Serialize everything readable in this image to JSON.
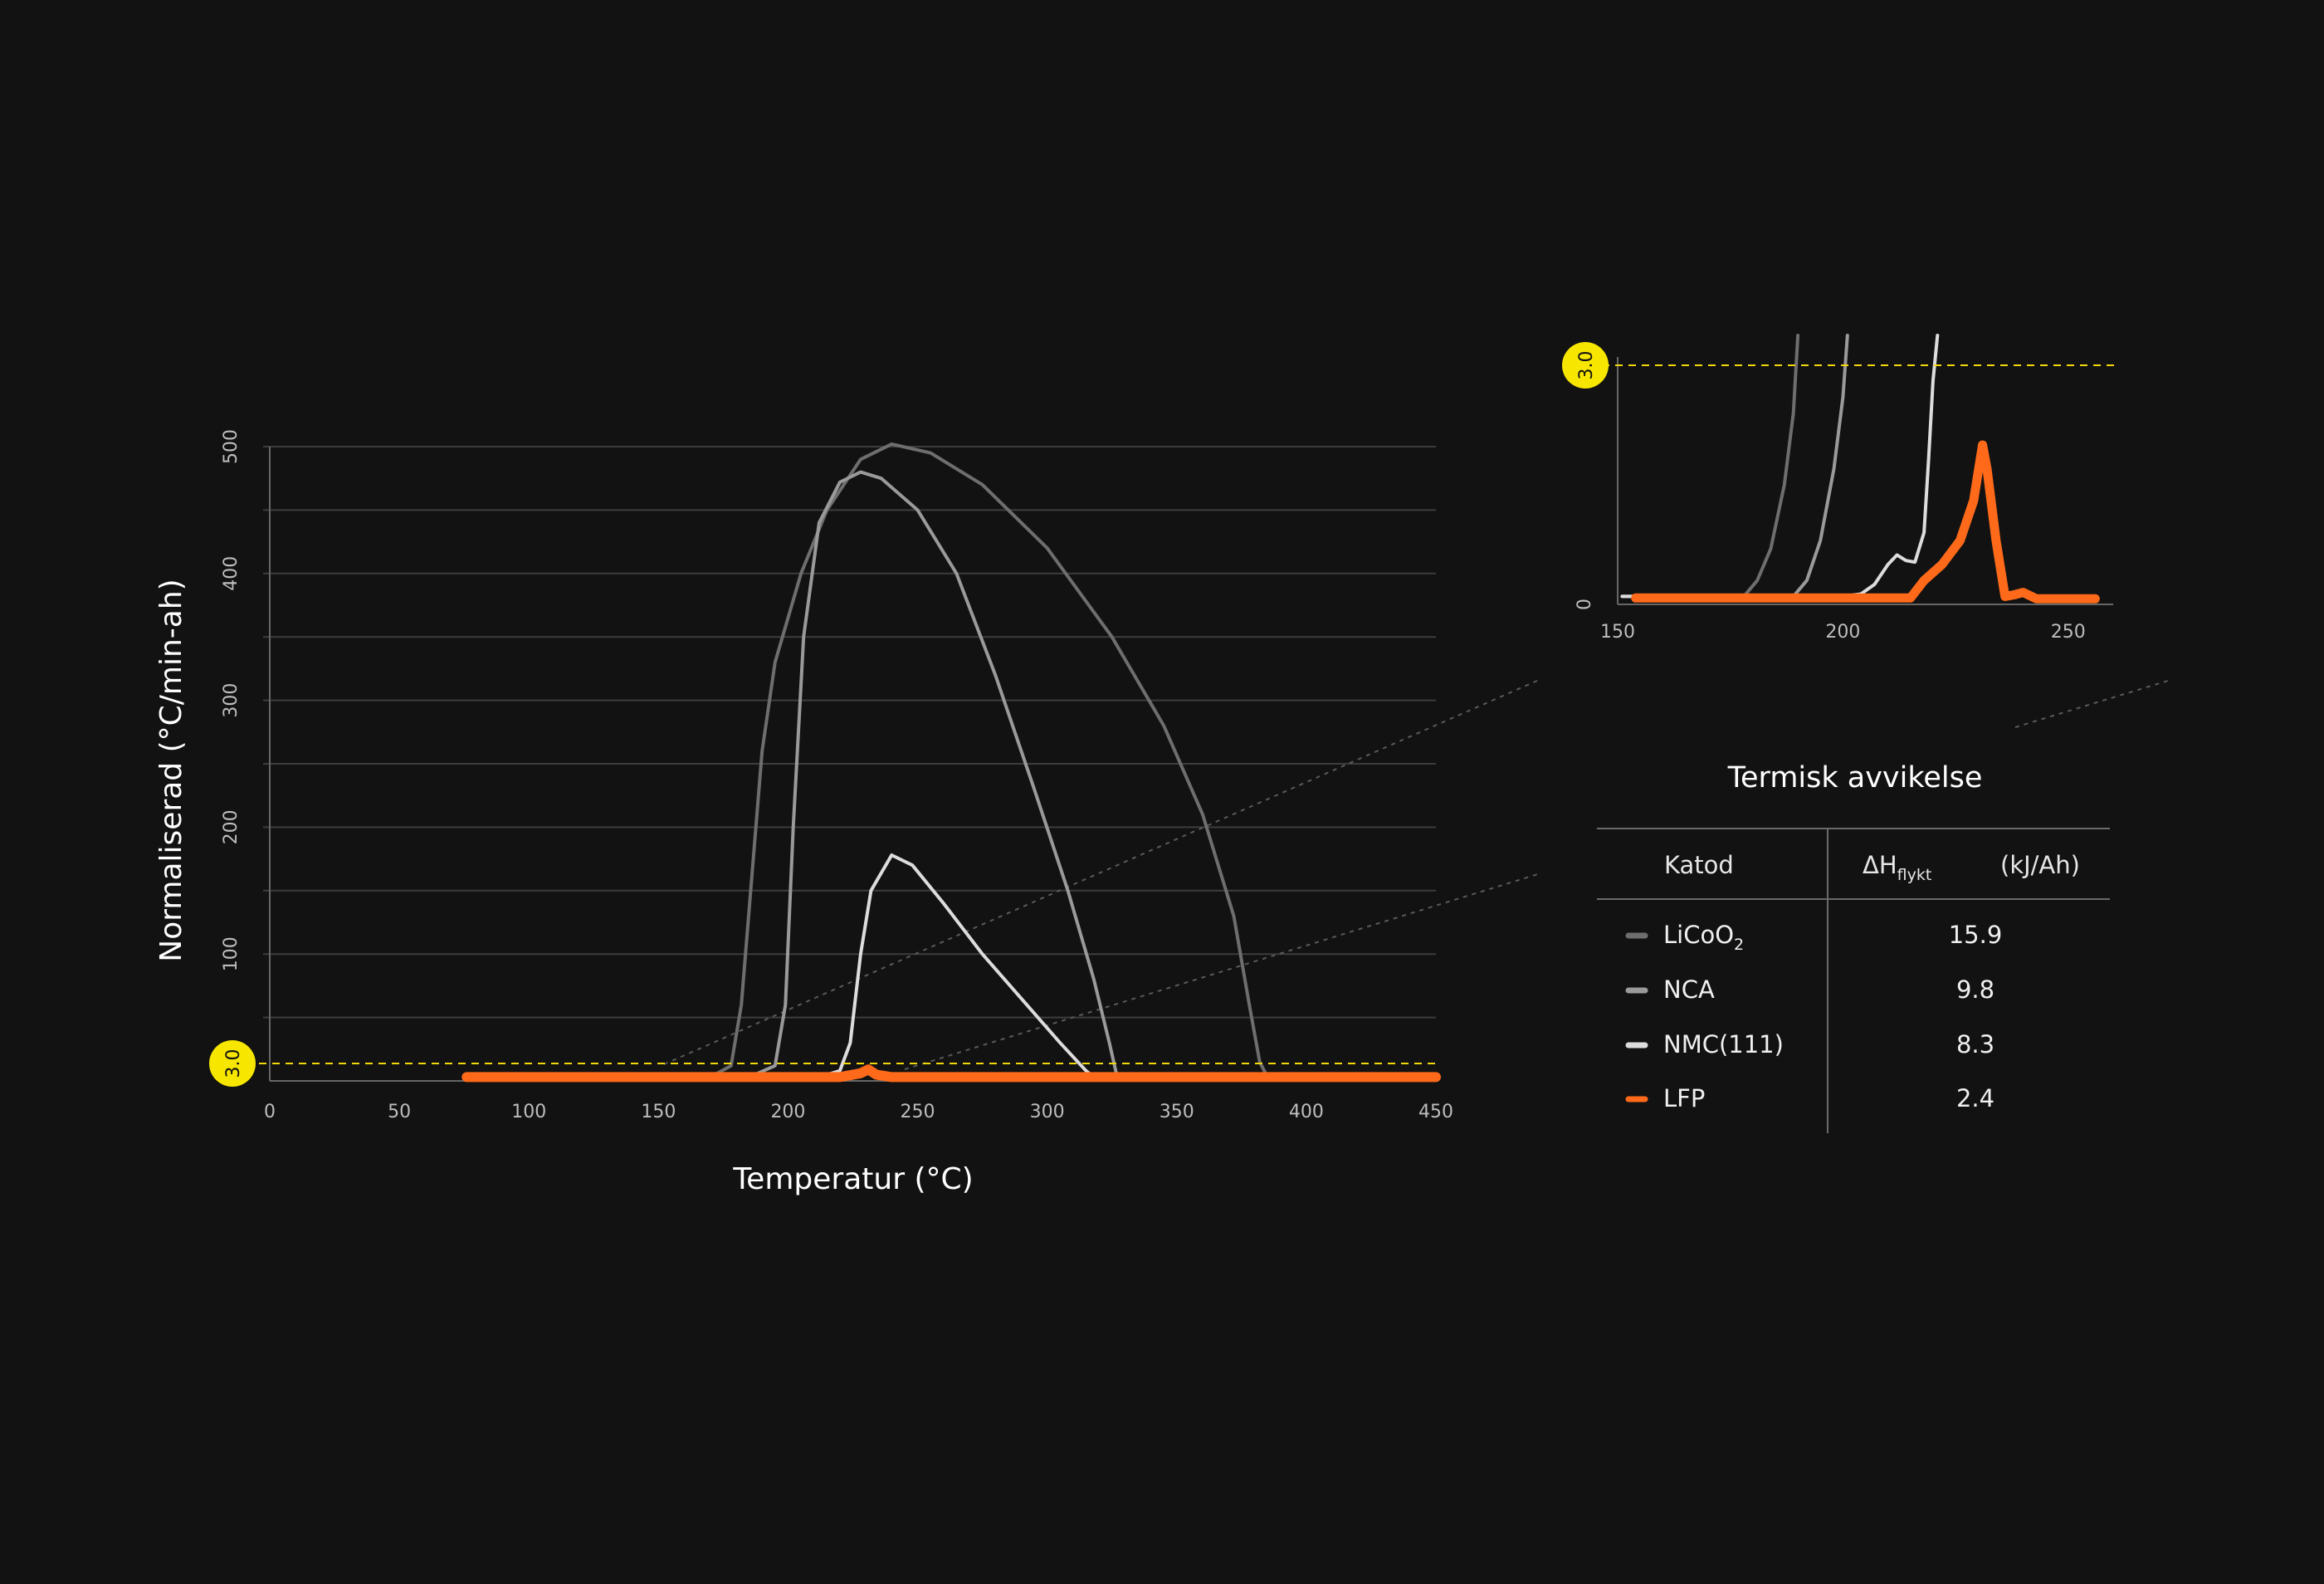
{
  "chart_data": [
    {
      "type": "line",
      "xlabel": "Temperatur (°C)",
      "ylabel": "Normaliserad (°C/min-ah)",
      "xlim": [
        0,
        450
      ],
      "ylim": [
        0,
        500
      ],
      "x_ticks": [
        "0",
        "50",
        "100",
        "150",
        "200",
        "250",
        "300",
        "350",
        "400",
        "450"
      ],
      "y_ticks": [
        "100",
        "200",
        "300",
        "400",
        "500"
      ],
      "grid": true,
      "threshold": {
        "value": 3.0,
        "label": "3.0"
      },
      "series": [
        {
          "name": "LiCoO2",
          "color": "#6e6e6e",
          "points": [
            [
              76,
              3
            ],
            [
              170,
              3
            ],
            [
              178,
              12
            ],
            [
              182,
              60
            ],
            [
              186,
              160
            ],
            [
              190,
              260
            ],
            [
              195,
              330
            ],
            [
              205,
              400
            ],
            [
              215,
              450
            ],
            [
              228,
              490
            ],
            [
              240,
              502
            ],
            [
              255,
              495
            ],
            [
              275,
              470
            ],
            [
              300,
              420
            ],
            [
              325,
              350
            ],
            [
              345,
              280
            ],
            [
              360,
              210
            ],
            [
              372,
              130
            ],
            [
              378,
              60
            ],
            [
              382,
              15
            ],
            [
              385,
              3
            ],
            [
              450,
              3
            ]
          ]
        },
        {
          "name": "NCA",
          "color": "#9a9a9a",
          "points": [
            [
              76,
              3
            ],
            [
              185,
              3
            ],
            [
              195,
              12
            ],
            [
              199,
              60
            ],
            [
              202,
              200
            ],
            [
              206,
              350
            ],
            [
              212,
              440
            ],
            [
              220,
              472
            ],
            [
              228,
              480
            ],
            [
              236,
              475
            ],
            [
              250,
              450
            ],
            [
              265,
              400
            ],
            [
              280,
              320
            ],
            [
              295,
              230
            ],
            [
              308,
              150
            ],
            [
              318,
              80
            ],
            [
              324,
              30
            ],
            [
              327,
              3
            ],
            [
              450,
              3
            ]
          ]
        },
        {
          "name": "NMC(111)",
          "color": "#dddddd",
          "points": [
            [
              76,
              3
            ],
            [
              212,
              3
            ],
            [
              220,
              8
            ],
            [
              224,
              30
            ],
            [
              228,
              100
            ],
            [
              232,
              150
            ],
            [
              240,
              178
            ],
            [
              248,
              170
            ],
            [
              260,
              140
            ],
            [
              275,
              100
            ],
            [
              290,
              65
            ],
            [
              305,
              30
            ],
            [
              315,
              8
            ],
            [
              318,
              3
            ],
            [
              450,
              3
            ]
          ]
        },
        {
          "name": "LFP",
          "color": "#ff6a1a",
          "points": [
            [
              76,
              3
            ],
            [
              220,
              3
            ],
            [
              228,
              6
            ],
            [
              231,
              9
            ],
            [
              234,
              5
            ],
            [
              240,
              3
            ],
            [
              450,
              3
            ]
          ]
        }
      ]
    },
    {
      "type": "line",
      "xlim": [
        150,
        260
      ],
      "ylim": [
        0,
        3.0
      ],
      "x_ticks": [
        "150",
        "200",
        "250"
      ],
      "y_ticks": [
        "0"
      ],
      "threshold": {
        "value": 3.0,
        "label": "3.0"
      },
      "series": [
        {
          "name": "LiCoO2",
          "color": "#6e6e6e",
          "points": [
            [
              151,
              0.1
            ],
            [
              178,
              0.1
            ],
            [
              181,
              0.3
            ],
            [
              184,
              0.7
            ],
            [
              187,
              1.5
            ],
            [
              189,
              2.4
            ],
            [
              190,
              3.4
            ]
          ]
        },
        {
          "name": "NCA",
          "color": "#9a9a9a",
          "points": [
            [
              151,
              0.1
            ],
            [
              189,
              0.1
            ],
            [
              192,
              0.3
            ],
            [
              195,
              0.8
            ],
            [
              198,
              1.7
            ],
            [
              200,
              2.6
            ],
            [
              201,
              3.4
            ]
          ]
        },
        {
          "name": "NMC(111)",
          "color": "#dddddd",
          "points": [
            [
              151,
              0.1
            ],
            [
              200,
              0.1
            ],
            [
              204,
              0.13
            ],
            [
              207,
              0.25
            ],
            [
              210,
              0.5
            ],
            [
              212,
              0.62
            ],
            [
              214,
              0.55
            ],
            [
              216,
              0.53
            ],
            [
              218,
              0.9
            ],
            [
              219,
              1.8
            ],
            [
              220,
              2.8
            ],
            [
              221,
              3.4
            ]
          ]
        },
        {
          "name": "LFP",
          "color": "#ff6a1a",
          "points": [
            [
              154,
              0.08
            ],
            [
              215,
              0.08
            ],
            [
              218,
              0.3
            ],
            [
              222,
              0.5
            ],
            [
              226,
              0.8
            ],
            [
              229,
              1.3
            ],
            [
              231,
              2.0
            ],
            [
              232,
              1.7
            ],
            [
              234,
              0.8
            ],
            [
              236,
              0.1
            ],
            [
              238,
              0.12
            ],
            [
              240,
              0.15
            ],
            [
              243,
              0.07
            ],
            [
              256,
              0.07
            ]
          ]
        }
      ]
    }
  ],
  "table": {
    "title": "Termisk avvikelse",
    "col_katod": "Katod",
    "col_dh_main": "ΔH",
    "col_dh_sub": "flykt",
    "col_unit": "(kJ/Ah)",
    "rows": [
      {
        "label": "LiCoO",
        "subscript": "2",
        "value": "15.9",
        "color": "#6e6e6e"
      },
      {
        "label": "NCA",
        "subscript": "",
        "value": "9.8",
        "color": "#9a9a9a"
      },
      {
        "label": "NMC(111)",
        "subscript": "",
        "value": "8.3",
        "color": "#dddddd"
      },
      {
        "label": "LFP",
        "subscript": "",
        "value": "2.4",
        "color": "#ff6a1a"
      }
    ]
  },
  "colors": {
    "background": "#121212",
    "threshold": "#f2d80a",
    "badge": "#f7e600",
    "grid": "#444444"
  }
}
